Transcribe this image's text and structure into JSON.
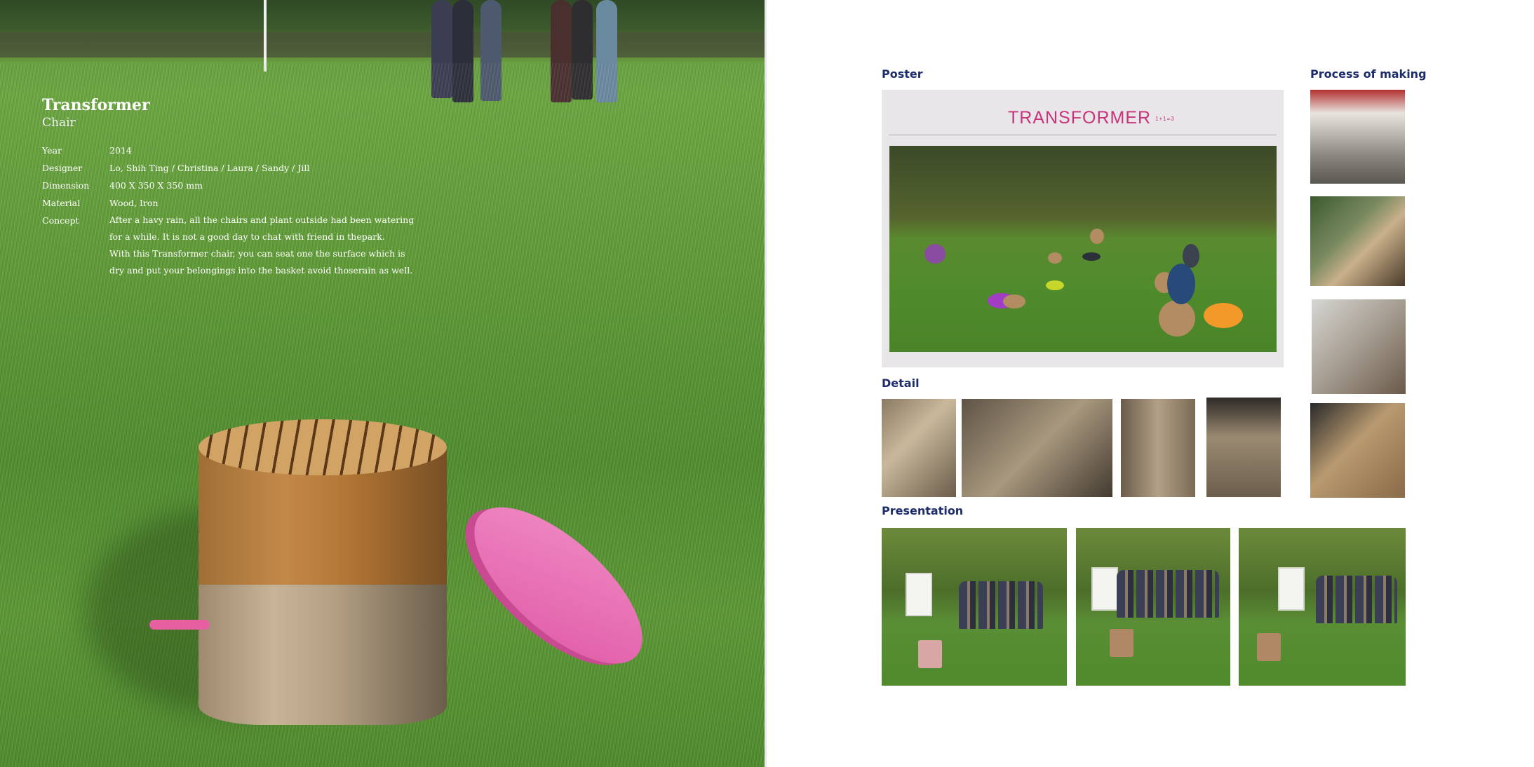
{
  "project": {
    "title": "Transformer",
    "subtitle": "Chair",
    "specs": [
      {
        "label": "Year",
        "value": "2014"
      },
      {
        "label": "Designer",
        "value": "Lo, Shih Ting / Christina / Laura / Sandy / Jill"
      },
      {
        "label": "Dimension",
        "value": "400 X 350 X 350 mm"
      },
      {
        "label": "Material",
        "value": "Wood, Iron"
      }
    ],
    "concept_label": "Concept",
    "concept_lines": [
      "After a havy rain, all the chairs and plant outside had been watering",
      "for a while. It is not a good day to chat with friend in thepark.",
      "With this Transformer chair, you can seat one the surface which is",
      "dry and put your belongings into the basket avoid thoserain as well."
    ]
  },
  "sections": {
    "poster": "Poster",
    "detail": "Detail",
    "presentation": "Presentation",
    "process": "Process of making"
  },
  "poster": {
    "title": "TRANSFORMER",
    "subtitle": "1+1=3"
  },
  "colors": {
    "heading": "#1d2d6b",
    "accent_pink": "#e05ca8",
    "poster_title": "#c8337a"
  }
}
